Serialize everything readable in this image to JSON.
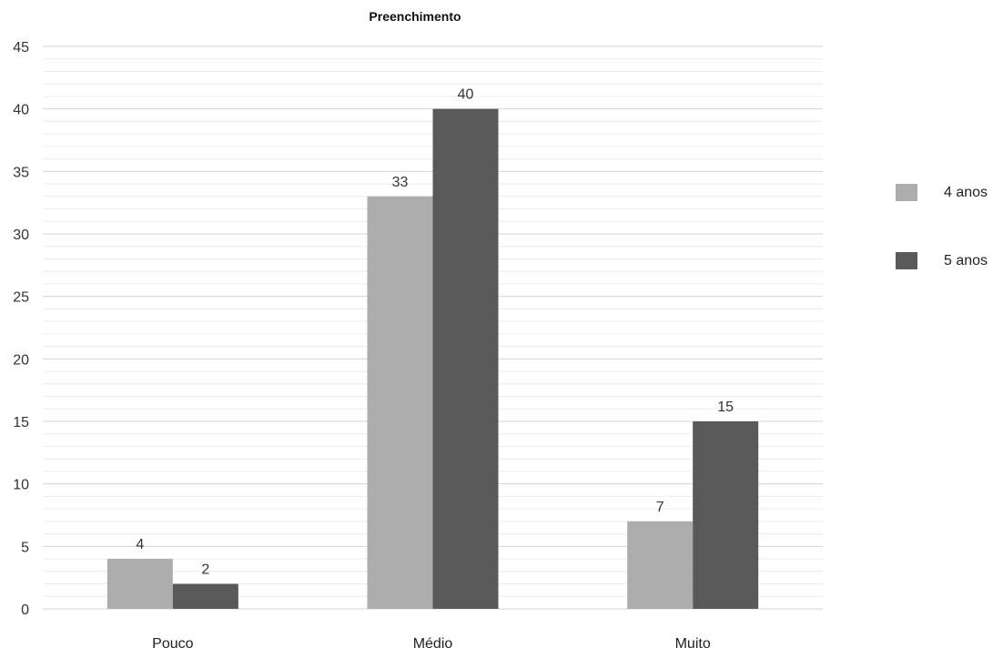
{
  "chart_data": {
    "type": "bar",
    "title": "Preenchimento",
    "xlabel": "",
    "ylabel": "",
    "categories": [
      "Pouco",
      "Médio",
      "Muito"
    ],
    "series": [
      {
        "name": "4 anos",
        "values": [
          4,
          33,
          7
        ],
        "color": "#adadad"
      },
      {
        "name": "5 anos",
        "values": [
          2,
          40,
          15
        ],
        "color": "#595959"
      }
    ],
    "ylim": [
      0,
      45
    ],
    "yticks": [
      0,
      5,
      10,
      15,
      20,
      25,
      30,
      35,
      40,
      45
    ],
    "minor_grid_step": 1,
    "grid": true,
    "legend_position": "right",
    "data_labels": true
  }
}
